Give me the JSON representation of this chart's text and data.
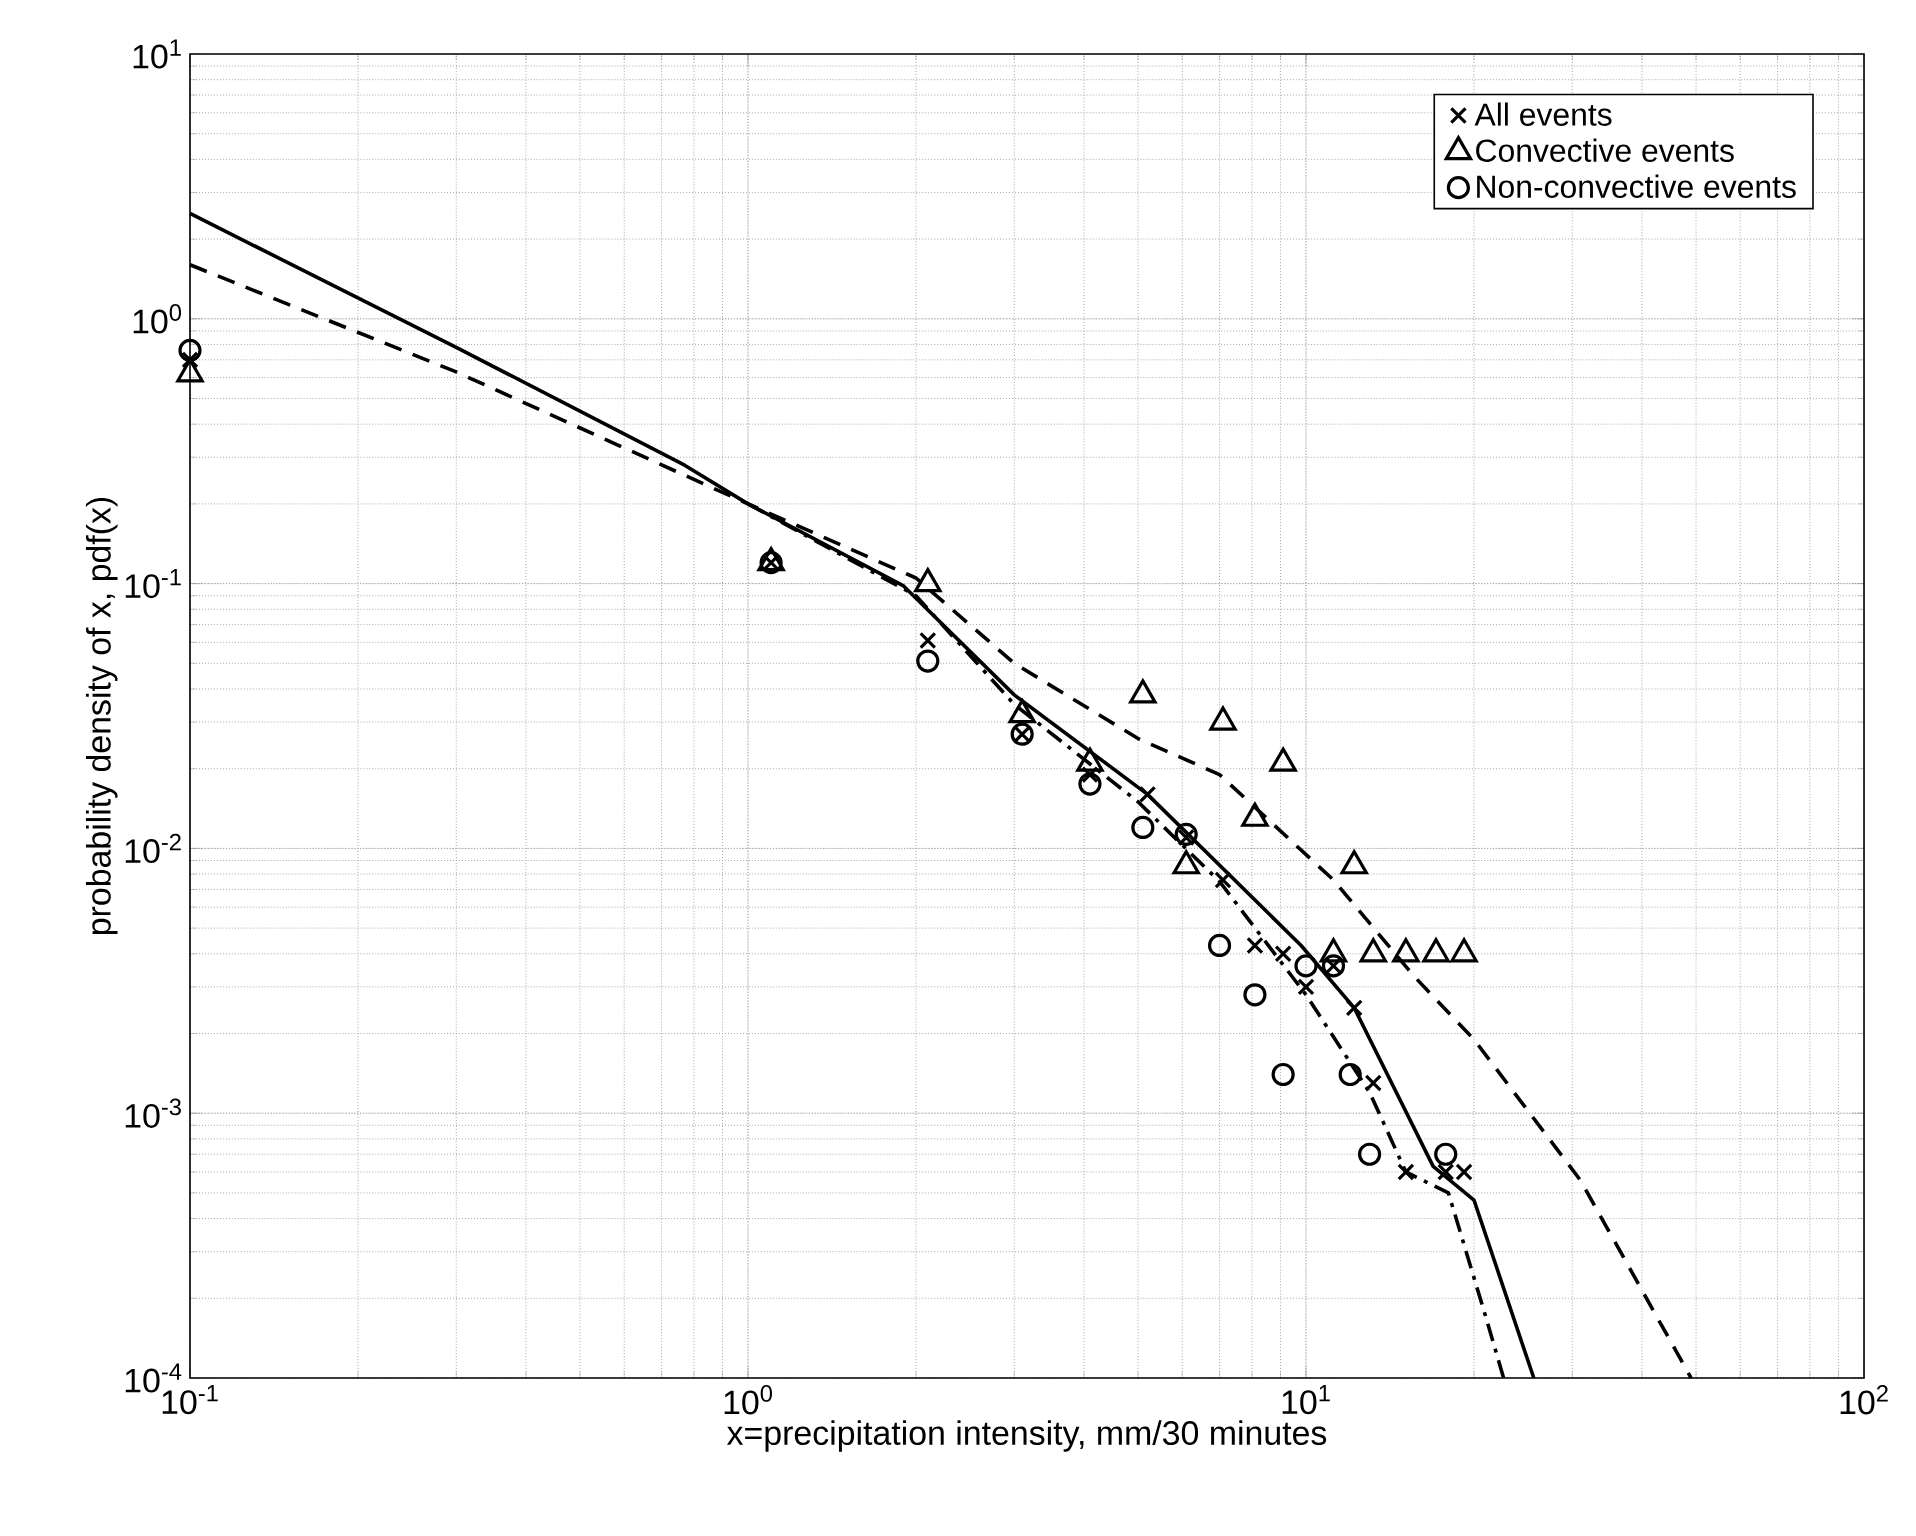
{
  "chart_data": {
    "type": "scatter",
    "xlabel": "x=precipitation intensity, mm/30 minutes",
    "ylabel": "probability density of x, pdf(x)",
    "log": "xy",
    "grid": true,
    "legend": "top right",
    "xlim": [
      0.1,
      100
    ],
    "ylim": [
      0.0001,
      10
    ],
    "xticks": [
      {
        "value": 0.1,
        "label": "10$^{-1}$"
      },
      {
        "value": 1,
        "label": "10$^{0}$"
      },
      {
        "value": 10,
        "label": "10$^{1}$"
      },
      {
        "value": 100,
        "label": "10$^{2}$"
      }
    ],
    "yticks": [
      {
        "value": 0.0001,
        "label": "10$^{-4}$"
      },
      {
        "value": 0.001,
        "label": "10$^{-3}$"
      },
      {
        "value": 0.01,
        "label": "10$^{-2}$"
      },
      {
        "value": 0.1,
        "label": "10$^{-1}$"
      },
      {
        "value": 1,
        "label": "10$^{0}$"
      },
      {
        "value": 10,
        "label": "10$^{1}$"
      }
    ],
    "series": [
      {
        "name": "All events",
        "marker": "cross",
        "color": "#000000",
        "x": [
          0.1,
          1.1,
          2.1,
          3.1,
          4.1,
          5.2,
          6.1,
          7.1,
          8.1,
          9.1,
          10,
          11.2,
          12.2,
          13.2,
          15.1,
          17.8,
          19.2
        ],
        "values": [
          0.7,
          0.12,
          0.061,
          0.027,
          0.019,
          0.016,
          0.011,
          0.0076,
          0.0043,
          0.004,
          0.003,
          0.0036,
          0.0025,
          0.0013,
          0.0006,
          0.0006,
          0.0006
        ]
      },
      {
        "name": "Convective events",
        "marker": "triangle",
        "color": "#000000",
        "x": [
          0.1,
          1.1,
          2.1,
          3.1,
          4.1,
          5.1,
          6.1,
          7.1,
          8.1,
          9.1,
          11.2,
          12.2,
          13.2,
          15.1,
          17.1,
          19.2
        ],
        "values": [
          0.62,
          0.12,
          0.1,
          0.032,
          0.021,
          0.038,
          0.0086,
          0.03,
          0.013,
          0.021,
          0.004,
          0.0086,
          0.004,
          0.004,
          0.004,
          0.004
        ]
      },
      {
        "name": "Non-convective events",
        "marker": "circle",
        "color": "#000000",
        "x": [
          0.1,
          1.1,
          2.1,
          3.1,
          4.1,
          5.1,
          6.1,
          7.0,
          8.1,
          9.1,
          10,
          11.2,
          12,
          13,
          17.8
        ],
        "values": [
          0.76,
          0.12,
          0.051,
          0.027,
          0.0175,
          0.012,
          0.0113,
          0.0043,
          0.0028,
          0.0014,
          0.0036,
          0.0036,
          0.0014,
          0.0007,
          0.0007
        ]
      },
      {
        "type": "line",
        "line_style": "solid",
        "color": "#000000",
        "x": [
          0.1,
          0.3,
          0.77,
          1,
          1.9,
          3,
          5.2,
          9.8,
          12.2,
          16.9,
          20,
          25.6
        ],
        "values": [
          2.5,
          0.78,
          0.28,
          0.2,
          0.098,
          0.038,
          0.016,
          0.0043,
          0.0025,
          0.00063,
          0.00047,
          0.0001
        ]
      },
      {
        "type": "line",
        "line_style": "dashed",
        "color": "#000000",
        "x": [
          0.1,
          0.3,
          1,
          2,
          3,
          5,
          7,
          11.2,
          15.6,
          20,
          31,
          49
        ],
        "values": [
          1.6,
          0.63,
          0.2,
          0.105,
          0.05,
          0.026,
          0.019,
          0.0076,
          0.0033,
          0.0019,
          0.00056,
          0.0001
        ]
      },
      {
        "type": "line",
        "line_style": "dashdot",
        "color": "#000000",
        "x": [
          1,
          2,
          3,
          5,
          7,
          10,
          13,
          15.1,
          18,
          21,
          22.6
        ],
        "values": [
          0.2,
          0.09,
          0.035,
          0.015,
          0.0075,
          0.0028,
          0.0012,
          0.0006,
          0.0005,
          0.00017,
          0.0001
        ]
      }
    ]
  }
}
